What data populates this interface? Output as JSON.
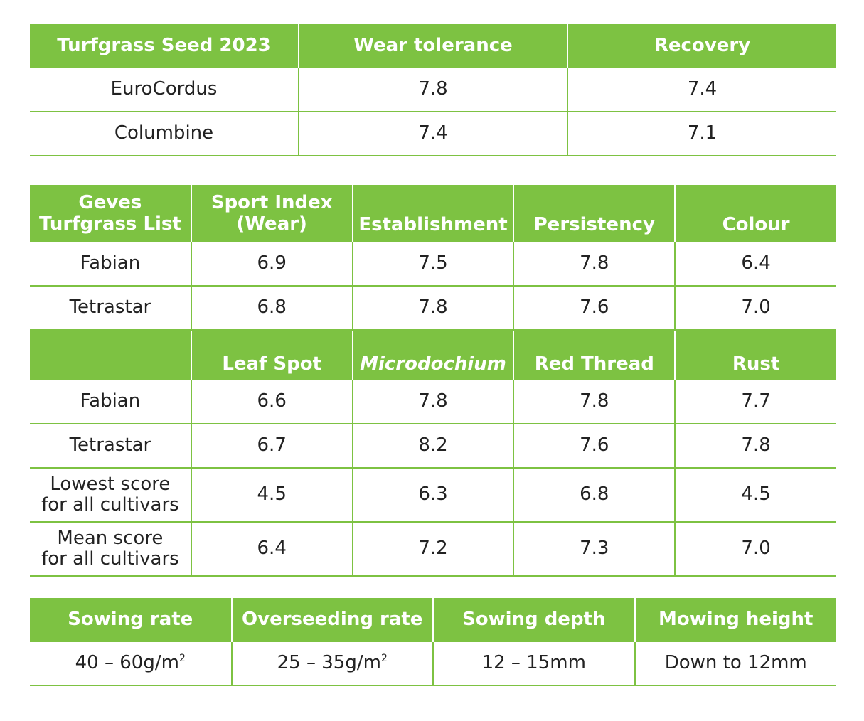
{
  "table1": {
    "headers": [
      "Turfgrass Seed 2023",
      "Wear tolerance",
      "Recovery"
    ],
    "rows": [
      [
        "EuroCordus",
        "7.8",
        "7.4"
      ],
      [
        "Columbine",
        "7.4",
        "7.1"
      ]
    ]
  },
  "table2": {
    "headers": [
      [
        "Geves",
        "Turfgrass List"
      ],
      [
        "Sport Index",
        "(Wear)"
      ],
      "Establishment",
      "Persistency",
      "Colour"
    ],
    "rows": [
      [
        "Fabian",
        "6.9",
        "7.5",
        "7.8",
        "6.4"
      ],
      [
        "Tetrastar",
        "6.8",
        "7.8",
        "7.6",
        "7.0"
      ]
    ],
    "subheaders": [
      "",
      "Leaf Spot",
      "Microdochium",
      "Red Thread",
      "Rust"
    ],
    "subrows": [
      [
        [
          "Fabian"
        ],
        "6.6",
        "7.8",
        "7.8",
        "7.7"
      ],
      [
        [
          "Tetrastar"
        ],
        "6.7",
        "8.2",
        "7.6",
        "7.8"
      ],
      [
        [
          "Lowest score",
          "for all cultivars"
        ],
        "4.5",
        "6.3",
        "6.8",
        "4.5"
      ],
      [
        [
          "Mean score",
          "for all cultivars"
        ],
        "6.4",
        "7.2",
        "7.3",
        "7.0"
      ]
    ]
  },
  "table3": {
    "headers": [
      "Sowing rate",
      "Overseeding rate",
      "Sowing depth",
      "Mowing height"
    ],
    "row": {
      "sowing_rate": "40 – 60g/m",
      "sowing_rate_sup": "2",
      "overseeding_rate": "25 – 35g/m",
      "overseeding_rate_sup": "2",
      "sowing_depth": "12 – 15mm",
      "mowing_height": "Down to 12mm"
    }
  },
  "colors": {
    "accent": "#7dc242",
    "header_text": "#ffffff",
    "body_text": "#222222"
  }
}
